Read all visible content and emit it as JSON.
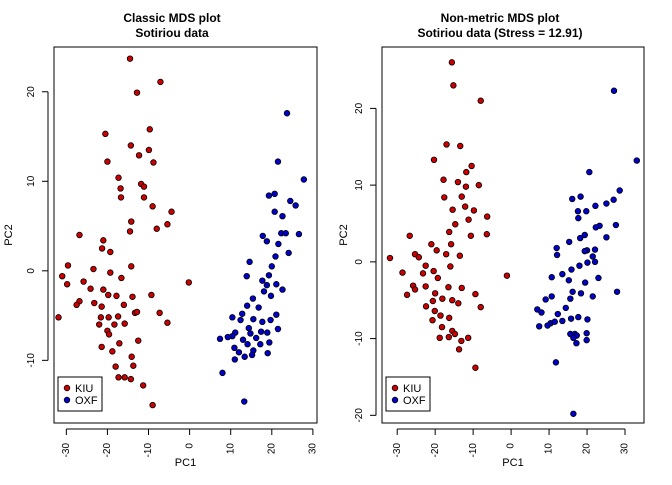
{
  "chart_data": [
    {
      "type": "scatter",
      "title": "Classic MDS plot",
      "subtitle": "Sotiriou data",
      "xlabel": "PC1",
      "ylabel": "PC2",
      "xlim": [
        -33,
        31
      ],
      "ylim": [
        -17,
        25
      ],
      "x_ticks": [
        -30,
        -20,
        -10,
        0,
        10,
        20,
        30
      ],
      "y_ticks": [
        -10,
        0,
        10,
        20
      ],
      "legend_position": "bottom-left",
      "series": [
        {
          "name": "KIU",
          "color": "#cc0000",
          "points": [
            [
              -14.5,
              23.7
            ],
            [
              -12.8,
              19.9
            ],
            [
              -7.1,
              21.1
            ],
            [
              -20.5,
              15.3
            ],
            [
              -9.7,
              15.8
            ],
            [
              -14.3,
              14.0
            ],
            [
              -20.0,
              12.2
            ],
            [
              -12.3,
              12.9
            ],
            [
              -9.9,
              13.5
            ],
            [
              -8.8,
              12.1
            ],
            [
              -17.3,
              10.4
            ],
            [
              -11.8,
              9.7
            ],
            [
              -16.8,
              9.2
            ],
            [
              -16.7,
              8.2
            ],
            [
              -11.1,
              9.4
            ],
            [
              -11.1,
              8.2
            ],
            [
              -9.0,
              7.2
            ],
            [
              -4.4,
              6.6
            ],
            [
              -5.4,
              5.2
            ],
            [
              -14.2,
              5.5
            ],
            [
              -14.5,
              4.4
            ],
            [
              -8.0,
              4.7
            ],
            [
              -26.8,
              4.0
            ],
            [
              -21.0,
              3.4
            ],
            [
              -21.3,
              2.5
            ],
            [
              -19.3,
              2.1
            ],
            [
              -29.6,
              0.6
            ],
            [
              -23.4,
              0.2
            ],
            [
              -14.2,
              0.5
            ],
            [
              -19.3,
              -0.2
            ],
            [
              -25.8,
              -1.2
            ],
            [
              -31.0,
              -0.6
            ],
            [
              -29.8,
              -1.5
            ],
            [
              -16.6,
              -0.8
            ],
            [
              -24.1,
              -2.0
            ],
            [
              -0.2,
              -1.3
            ],
            [
              -21.0,
              -2.1
            ],
            [
              -26.8,
              -3.4
            ],
            [
              -27.5,
              -3.8
            ],
            [
              -23.2,
              -3.6
            ],
            [
              -19.8,
              -2.7
            ],
            [
              -17.8,
              -2.8
            ],
            [
              -13.9,
              -2.9
            ],
            [
              -16.0,
              -3.8
            ],
            [
              -9.3,
              -2.7
            ],
            [
              -21.4,
              -4.0
            ],
            [
              -21.6,
              -5.2
            ],
            [
              -19.7,
              -5.2
            ],
            [
              -17.4,
              -5.1
            ],
            [
              -13.3,
              -4.7
            ],
            [
              -12.8,
              -4.6
            ],
            [
              -7.3,
              -4.7
            ],
            [
              -31.9,
              -5.2
            ],
            [
              -18.3,
              -6.0
            ],
            [
              -22.0,
              -6.0
            ],
            [
              -20.0,
              -6.7
            ],
            [
              -15.8,
              -5.9
            ],
            [
              -5.4,
              -5.8
            ],
            [
              -19.6,
              -7.1
            ],
            [
              -21.4,
              -8.5
            ],
            [
              -17.1,
              -8.1
            ],
            [
              -12.5,
              -7.8
            ],
            [
              -18.8,
              -9.0
            ],
            [
              -14.1,
              -9.6
            ],
            [
              -13.7,
              -10.6
            ],
            [
              -15.8,
              -11.9
            ],
            [
              -14.3,
              -12.1
            ],
            [
              -17.3,
              -11.9
            ],
            [
              -18.0,
              -10.7
            ],
            [
              -11.3,
              -12.8
            ],
            [
              -9.0,
              -15.0
            ]
          ]
        },
        {
          "name": "OXF",
          "color": "#0000cc",
          "points": [
            [
              23.7,
              17.6
            ],
            [
              27.8,
              10.2
            ],
            [
              21.5,
              12.2
            ],
            [
              19.3,
              8.4
            ],
            [
              20.7,
              8.6
            ],
            [
              22.6,
              6.1
            ],
            [
              24.5,
              7.8
            ],
            [
              25.8,
              7.3
            ],
            [
              20.7,
              6.6
            ],
            [
              22.3,
              4.2
            ],
            [
              17.8,
              3.9
            ],
            [
              18.8,
              3.3
            ],
            [
              21.6,
              3.0
            ],
            [
              23.4,
              4.2
            ],
            [
              26.6,
              4.1
            ],
            [
              24.1,
              2.0
            ],
            [
              20.9,
              1.6
            ],
            [
              20.0,
              0.5
            ],
            [
              14.6,
              1.0
            ],
            [
              13.9,
              -0.6
            ],
            [
              19.3,
              -0.5
            ],
            [
              17.7,
              -1.1
            ],
            [
              21.1,
              -1.5
            ],
            [
              18.8,
              -1.6
            ],
            [
              18.1,
              -2.3
            ],
            [
              15.4,
              -3.1
            ],
            [
              22.6,
              -2.1
            ],
            [
              19.8,
              -2.8
            ],
            [
              14.0,
              -3.9
            ],
            [
              16.8,
              -4.1
            ],
            [
              12.8,
              -4.8
            ],
            [
              21.1,
              -4.9
            ],
            [
              15.5,
              -5.4
            ],
            [
              17.7,
              -5.7
            ],
            [
              19.7,
              -5.5
            ],
            [
              12.4,
              -5.5
            ],
            [
              10.4,
              -5.2
            ],
            [
              14.4,
              -6.4
            ],
            [
              17.4,
              -6.8
            ],
            [
              11.1,
              -6.9
            ],
            [
              18.9,
              -6.9
            ],
            [
              21.5,
              -6.5
            ],
            [
              14.8,
              -7.0
            ],
            [
              19.4,
              -8.0
            ],
            [
              13.0,
              -7.7
            ],
            [
              10.4,
              -7.3
            ],
            [
              9.3,
              -7.4
            ],
            [
              16.2,
              -7.5
            ],
            [
              17.2,
              -8.2
            ],
            [
              15.5,
              -8.9
            ],
            [
              10.9,
              -8.6
            ],
            [
              14.1,
              -8.2
            ],
            [
              12.0,
              -9.1
            ],
            [
              19.0,
              -9.2
            ],
            [
              13.4,
              -9.6
            ],
            [
              11.0,
              -9.9
            ],
            [
              7.4,
              -7.6
            ],
            [
              15.2,
              -9.4
            ],
            [
              8.0,
              -11.4
            ],
            [
              13.3,
              -14.6
            ]
          ]
        }
      ]
    },
    {
      "type": "scatter",
      "title": "Non-metric MDS plot",
      "subtitle": "Sotiriou data (Stress = 12.91)",
      "xlabel": "PC1",
      "ylabel": "PC2",
      "xlim": [
        -34,
        35
      ],
      "ylim": [
        -21,
        28
      ],
      "x_ticks": [
        -30,
        -20,
        -10,
        0,
        10,
        20,
        30
      ],
      "y_ticks": [
        -20,
        -10,
        0,
        10,
        20
      ],
      "legend_position": "bottom-left",
      "series": [
        {
          "name": "KIU",
          "color": "#cc0000",
          "points": [
            [
              -15.6,
              26.0
            ],
            [
              -15.2,
              23.0
            ],
            [
              -8.0,
              21.0
            ],
            [
              -17.0,
              15.3
            ],
            [
              -13.4,
              15.1
            ],
            [
              -20.3,
              13.3
            ],
            [
              -10.4,
              12.5
            ],
            [
              -11.8,
              11.7
            ],
            [
              -17.8,
              10.7
            ],
            [
              -14.0,
              10.4
            ],
            [
              -11.9,
              9.8
            ],
            [
              -8.5,
              10.0
            ],
            [
              -17.6,
              8.4
            ],
            [
              -13.0,
              8.5
            ],
            [
              -15.4,
              6.8
            ],
            [
              -12.1,
              7.2
            ],
            [
              -9.8,
              6.7
            ],
            [
              -11.2,
              5.5
            ],
            [
              -6.3,
              5.9
            ],
            [
              -14.7,
              4.9
            ],
            [
              -16.3,
              3.9
            ],
            [
              -26.7,
              3.4
            ],
            [
              -10.6,
              3.4
            ],
            [
              -21.0,
              2.3
            ],
            [
              -15.8,
              2.3
            ],
            [
              -6.4,
              3.6
            ],
            [
              -19.6,
              1.5
            ],
            [
              -25.3,
              1.0
            ],
            [
              -17.1,
              1.0
            ],
            [
              -31.9,
              0.5
            ],
            [
              -24.3,
              0.6
            ],
            [
              -13.5,
              0.8
            ],
            [
              -22.5,
              -0.5
            ],
            [
              -28.6,
              -1.4
            ],
            [
              -16.0,
              -0.6
            ],
            [
              -20.4,
              -1.2
            ],
            [
              -19.3,
              -2.1
            ],
            [
              -23.2,
              -1.5
            ],
            [
              -1.1,
              -1.8
            ],
            [
              -25.8,
              -3.1
            ],
            [
              -25.3,
              -3.6
            ],
            [
              -16.5,
              -3.3
            ],
            [
              -13.0,
              -3.4
            ],
            [
              -22.5,
              -3.2
            ],
            [
              -20.0,
              -4.1
            ],
            [
              -9.4,
              -4.2
            ],
            [
              -27.4,
              -4.3
            ],
            [
              -18.1,
              -4.8
            ],
            [
              -15.5,
              -5.0
            ],
            [
              -20.6,
              -5.1
            ],
            [
              -22.4,
              -5.8
            ],
            [
              -13.9,
              -5.4
            ],
            [
              -20.1,
              -6.4
            ],
            [
              -8.0,
              -5.9
            ],
            [
              -18.6,
              -7.0
            ],
            [
              -16.3,
              -7.3
            ],
            [
              -20.7,
              -7.6
            ],
            [
              -18.2,
              -8.5
            ],
            [
              -15.5,
              -9.0
            ],
            [
              -14.8,
              -9.4
            ],
            [
              -16.4,
              -9.8
            ],
            [
              -18.8,
              -9.9
            ],
            [
              -13.1,
              -10.3
            ],
            [
              -11.3,
              -9.9
            ],
            [
              -13.7,
              -11.4
            ],
            [
              -9.4,
              -13.8
            ]
          ]
        },
        {
          "name": "OXF",
          "color": "#0000cc",
          "points": [
            [
              27.1,
              22.3
            ],
            [
              33.1,
              13.2
            ],
            [
              20.6,
              11.7
            ],
            [
              28.6,
              9.3
            ],
            [
              27.0,
              8.1
            ],
            [
              22.2,
              7.3
            ],
            [
              16.1,
              8.2
            ],
            [
              18.3,
              8.5
            ],
            [
              25.1,
              7.6
            ],
            [
              17.6,
              6.6
            ],
            [
              19.8,
              6.6
            ],
            [
              17.7,
              5.7
            ],
            [
              23.3,
              4.7
            ],
            [
              27.6,
              4.8
            ],
            [
              22.3,
              4.5
            ],
            [
              19.4,
              3.5
            ],
            [
              15.3,
              2.6
            ],
            [
              18.2,
              3.1
            ],
            [
              25.1,
              3.2
            ],
            [
              20.0,
              1.5
            ],
            [
              22.1,
              1.6
            ],
            [
              12.0,
              1.8
            ],
            [
              12.1,
              0.9
            ],
            [
              19.4,
              1.4
            ],
            [
              21.5,
              0.7
            ],
            [
              22.1,
              0.0
            ],
            [
              20.1,
              -0.1
            ],
            [
              18.0,
              -0.5
            ],
            [
              15.9,
              -1.0
            ],
            [
              13.5,
              -1.6
            ],
            [
              10.7,
              -2.0
            ],
            [
              23.0,
              -2.1
            ],
            [
              19.5,
              -2.7
            ],
            [
              15.2,
              -2.4
            ],
            [
              16.2,
              -3.9
            ],
            [
              27.9,
              -3.9
            ],
            [
              18.4,
              -4.1
            ],
            [
              15.6,
              -4.8
            ],
            [
              21.5,
              -4.5
            ],
            [
              10.7,
              -4.5
            ],
            [
              9.1,
              -4.9
            ],
            [
              6.9,
              -6.2
            ],
            [
              8.0,
              -6.6
            ],
            [
              14.4,
              -6.0
            ],
            [
              12.3,
              -6.8
            ],
            [
              17.7,
              -7.2
            ],
            [
              15.8,
              -7.4
            ],
            [
              20.1,
              -7.5
            ],
            [
              13.5,
              -7.7
            ],
            [
              10.4,
              -8.0
            ],
            [
              9.6,
              -8.3
            ],
            [
              7.4,
              -8.4
            ],
            [
              11.5,
              -7.8
            ],
            [
              15.6,
              -9.4
            ],
            [
              16.8,
              -9.4
            ],
            [
              17.3,
              -9.6
            ],
            [
              16.4,
              -9.9
            ],
            [
              19.9,
              -9.3
            ],
            [
              19.9,
              -10.2
            ],
            [
              17.2,
              -10.6
            ],
            [
              11.8,
              -13.1
            ],
            [
              16.4,
              -19.8
            ]
          ]
        }
      ]
    }
  ]
}
